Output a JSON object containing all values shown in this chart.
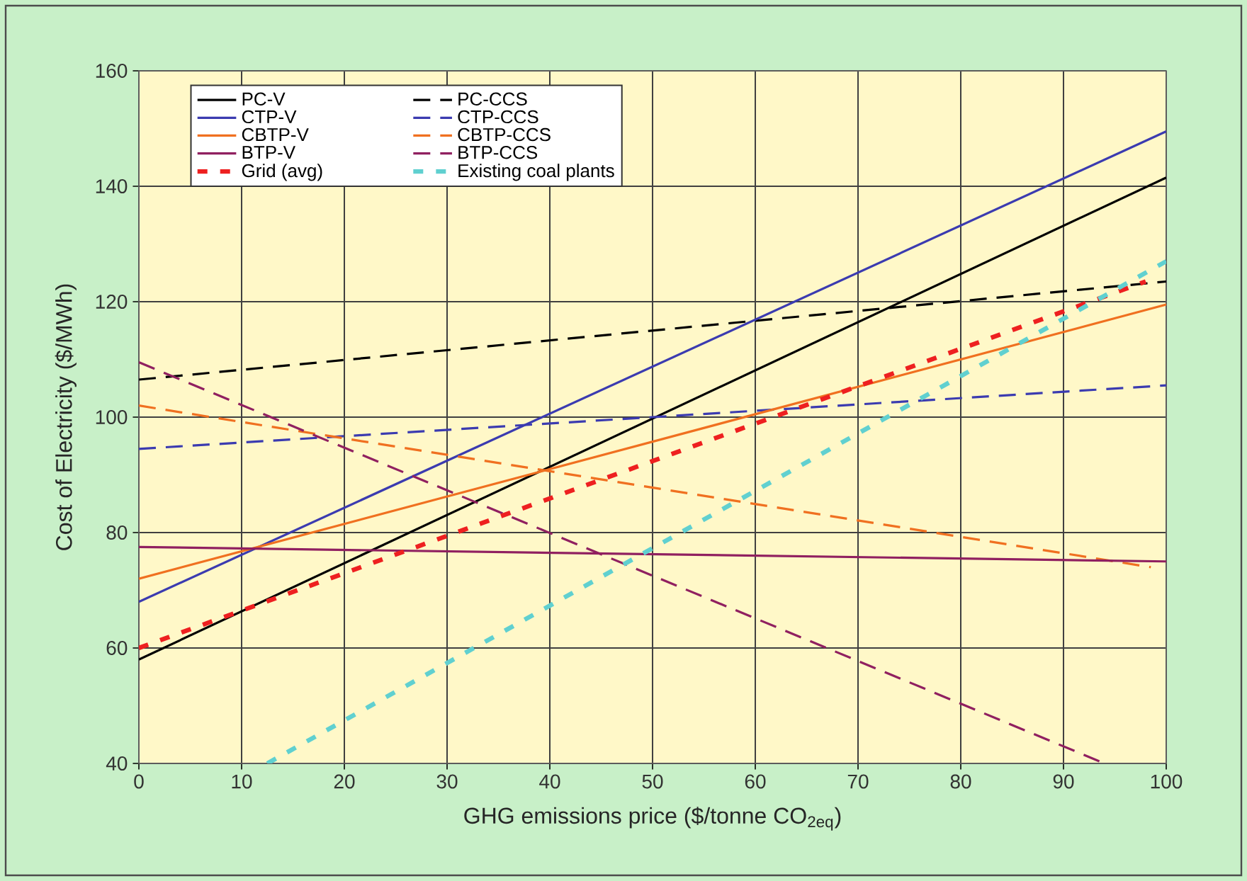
{
  "chart_data": {
    "type": "line",
    "xlabel": "GHG emissions price ($/tonne CO$_{2eq}$)",
    "ylabel": "Cost of Electricity ($/MWh)",
    "xlim": [
      0,
      100
    ],
    "ylim": [
      40,
      160
    ],
    "xticks": [
      0,
      10,
      20,
      30,
      40,
      50,
      60,
      70,
      80,
      90,
      100
    ],
    "yticks": [
      40,
      60,
      80,
      100,
      120,
      140,
      160
    ],
    "grid": true,
    "legend": "top left",
    "marker": "none",
    "series": [
      {
        "name": "PC-V",
        "color": "#000000",
        "line_style": "solid",
        "x": [
          0,
          100
        ],
        "values": [
          58,
          141.5
        ]
      },
      {
        "name": "PC-CCS",
        "color": "#000000",
        "line_style": "dashed",
        "x": [
          0,
          100
        ],
        "values": [
          106.5,
          123.5
        ]
      },
      {
        "name": "CTP-V",
        "color": "#3b3bb0",
        "line_style": "solid",
        "x": [
          0,
          100
        ],
        "values": [
          68,
          149.5
        ]
      },
      {
        "name": "CTP-CCS",
        "color": "#3b3bb0",
        "line_style": "dashed",
        "x": [
          0,
          100
        ],
        "values": [
          94.5,
          105.5
        ]
      },
      {
        "name": "CBTP-V",
        "color": "#f07020",
        "line_style": "solid",
        "x": [
          0,
          100
        ],
        "values": [
          72,
          119.5
        ]
      },
      {
        "name": "CBTP-CCS",
        "color": "#f07020",
        "line_style": "dashed",
        "x": [
          0,
          98.5
        ],
        "values": [
          102,
          74
        ]
      },
      {
        "name": "BTP-V",
        "color": "#902060",
        "line_style": "solid",
        "x": [
          0,
          100
        ],
        "values": [
          77.5,
          75
        ]
      },
      {
        "name": "BTP-CCS",
        "color": "#902060",
        "line_style": "dashed",
        "x": [
          0,
          94
        ],
        "values": [
          109.5,
          40
        ]
      },
      {
        "name": "Grid (avg)",
        "color": "#ee2020",
        "line_style": "dotted",
        "x": [
          0,
          98
        ],
        "values": [
          60,
          123.5
        ]
      },
      {
        "name": "Existing coal plants",
        "color": "#60d0d0",
        "line_style": "dotted",
        "x": [
          12.5,
          100
        ],
        "values": [
          40,
          127
        ]
      }
    ]
  }
}
